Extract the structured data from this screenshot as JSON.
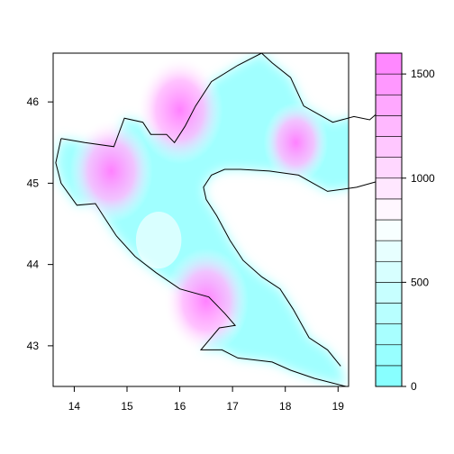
{
  "chart_data": {
    "type": "heatmap",
    "title": "",
    "xlabel": "",
    "ylabel": "",
    "xlim": [
      13.6,
      19.2
    ],
    "ylim": [
      42.5,
      46.6
    ],
    "x_ticks": [
      14,
      15,
      16,
      17,
      18,
      19
    ],
    "y_ticks": [
      43,
      44,
      45,
      46
    ],
    "legend_position": "right",
    "colorbar": {
      "range": [
        0,
        1600
      ],
      "step": 100,
      "ticks": [
        0,
        500,
        1000,
        1500
      ],
      "low_color": "#80ffff",
      "mid_color": "#ffffff",
      "high_color": "#ff80ff"
    },
    "hotspots": [
      {
        "x": 14.7,
        "y": 45.15,
        "value": 1500
      },
      {
        "x": 16.0,
        "y": 45.9,
        "value": 1600
      },
      {
        "x": 16.5,
        "y": 43.55,
        "value": 1550
      },
      {
        "x": 18.2,
        "y": 45.5,
        "value": 900
      },
      {
        "x": 15.6,
        "y": 44.3,
        "value": 300
      }
    ],
    "border_outline": [
      [
        13.75,
        45.55
      ],
      [
        14.2,
        45.5
      ],
      [
        14.75,
        45.45
      ],
      [
        14.95,
        45.8
      ],
      [
        15.3,
        45.75
      ],
      [
        15.45,
        45.6
      ],
      [
        15.75,
        45.6
      ],
      [
        15.9,
        45.5
      ],
      [
        16.1,
        45.7
      ],
      [
        16.3,
        45.95
      ],
      [
        16.6,
        46.25
      ],
      [
        17.1,
        46.45
      ],
      [
        17.55,
        46.6
      ],
      [
        17.75,
        46.48
      ],
      [
        18.1,
        46.3
      ],
      [
        18.35,
        45.95
      ],
      [
        18.9,
        45.75
      ],
      [
        19.3,
        45.82
      ],
      [
        19.6,
        45.78
      ],
      [
        19.9,
        45.95
      ],
      [
        20.05,
        45.75
      ]
    ],
    "coast_outline": [
      [
        13.75,
        45.55
      ],
      [
        13.65,
        45.25
      ],
      [
        13.75,
        45.0
      ],
      [
        14.05,
        44.73
      ],
      [
        14.4,
        44.75
      ],
      [
        14.55,
        44.6
      ],
      [
        14.8,
        44.35
      ],
      [
        15.15,
        44.1
      ],
      [
        15.55,
        43.9
      ],
      [
        16.0,
        43.7
      ],
      [
        16.55,
        43.6
      ],
      [
        16.85,
        43.4
      ],
      [
        17.05,
        43.25
      ],
      [
        16.75,
        43.22
      ],
      [
        16.4,
        42.95
      ],
      [
        16.8,
        42.95
      ],
      [
        17.1,
        42.85
      ],
      [
        17.75,
        42.8
      ],
      [
        18.1,
        42.7
      ],
      [
        18.55,
        42.6
      ],
      [
        19.15,
        42.5
      ]
    ],
    "interior_outline": [
      [
        19.9,
        45.05
      ],
      [
        19.35,
        44.95
      ],
      [
        18.8,
        44.9
      ],
      [
        18.25,
        45.1
      ],
      [
        17.7,
        45.15
      ],
      [
        17.15,
        45.17
      ],
      [
        16.85,
        45.17
      ],
      [
        16.6,
        45.1
      ],
      [
        16.45,
        44.95
      ],
      [
        16.5,
        44.8
      ],
      [
        16.7,
        44.6
      ],
      [
        16.95,
        44.3
      ],
      [
        17.2,
        44.05
      ],
      [
        17.55,
        43.85
      ],
      [
        17.9,
        43.7
      ],
      [
        18.15,
        43.45
      ],
      [
        18.45,
        43.1
      ],
      [
        18.8,
        42.95
      ],
      [
        19.05,
        42.75
      ]
    ]
  }
}
